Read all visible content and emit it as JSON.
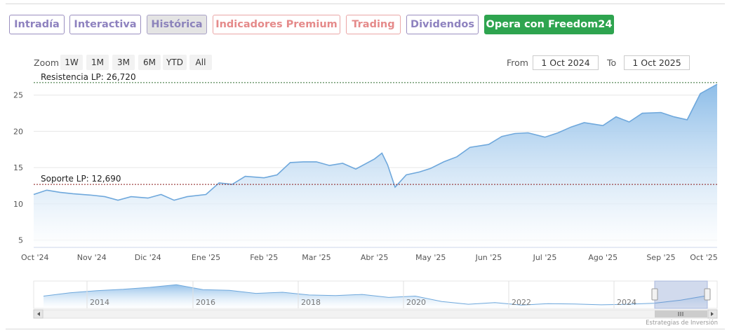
{
  "tabs": [
    {
      "label": "Intradía",
      "style": "normal"
    },
    {
      "label": "Interactiva",
      "style": "normal"
    },
    {
      "label": "Histórica",
      "style": "active"
    },
    {
      "label": "Indicadores Premium",
      "style": "premium"
    },
    {
      "label": "Trading",
      "style": "premium"
    },
    {
      "label": "Dividendos",
      "style": "normal"
    },
    {
      "label": "Opera con Freedom24",
      "style": "cta"
    }
  ],
  "zoom": {
    "label": "Zoom",
    "buttons": [
      "1W",
      "1M",
      "3M",
      "6M",
      "YTD",
      "All"
    ]
  },
  "range": {
    "from_label": "From",
    "from_value": "1 Oct 2024",
    "to_label": "To",
    "to_value": "1 Oct 2025"
  },
  "credit": "Estrategias de Inversión",
  "colors": {
    "line": "#6fa8dc",
    "area_top": "#8dbde8",
    "accent_green": "#2ea44f",
    "tab_purple": "#8e82bf",
    "tab_premium": "#e58a8a",
    "resistance": "#2e6b2e",
    "support": "#8b1a1a"
  },
  "chart_data": {
    "type": "area",
    "ylim": [
      4,
      27
    ],
    "yticks": [
      5,
      10,
      15,
      20,
      25
    ],
    "xticks": [
      "Oct '24",
      "Nov '24",
      "Dic '24",
      "Ene '25",
      "Feb '25",
      "Mar '25",
      "Abr '25",
      "May '25",
      "Jun '25",
      "Jul '25",
      "Ago '25",
      "Sep '25",
      "Oct '25"
    ],
    "x": [
      "2024-10-01",
      "2024-10-08",
      "2024-10-15",
      "2024-10-22",
      "2024-11-01",
      "2024-11-08",
      "2024-11-15",
      "2024-11-22",
      "2024-12-01",
      "2024-12-08",
      "2024-12-15",
      "2024-12-22",
      "2025-01-01",
      "2025-01-08",
      "2025-01-15",
      "2025-01-22",
      "2025-02-01",
      "2025-02-08",
      "2025-02-15",
      "2025-02-22",
      "2025-03-01",
      "2025-03-08",
      "2025-03-15",
      "2025-03-22",
      "2025-04-01",
      "2025-04-05",
      "2025-04-08",
      "2025-04-12",
      "2025-04-18",
      "2025-04-25",
      "2025-05-01",
      "2025-05-08",
      "2025-05-15",
      "2025-05-22",
      "2025-06-01",
      "2025-06-08",
      "2025-06-15",
      "2025-06-22",
      "2025-07-01",
      "2025-07-08",
      "2025-07-15",
      "2025-07-22",
      "2025-08-01",
      "2025-08-08",
      "2025-08-15",
      "2025-08-22",
      "2025-09-01",
      "2025-09-08",
      "2025-09-15",
      "2025-09-22",
      "2025-10-01"
    ],
    "series": [
      {
        "values": [
          11.3,
          11.9,
          11.6,
          11.4,
          11.2,
          11.0,
          10.5,
          11.0,
          10.8,
          11.3,
          10.5,
          11.0,
          11.3,
          12.9,
          12.7,
          13.8,
          13.6,
          14.0,
          15.7,
          15.8,
          15.8,
          15.3,
          15.6,
          14.8,
          16.2,
          17.0,
          15.4,
          12.3,
          14.0,
          14.4,
          14.9,
          15.8,
          16.5,
          17.8,
          18.2,
          19.3,
          19.7,
          19.8,
          19.2,
          19.8,
          20.6,
          21.2,
          20.8,
          22.0,
          21.3,
          22.5,
          22.6,
          22.0,
          21.6,
          25.2,
          26.5
        ]
      }
    ],
    "hlines": [
      {
        "label": "Resistencia LP: 26,720",
        "value": 26.72
      },
      {
        "label": "Soporte LP: 12,690",
        "value": 12.69
      }
    ]
  },
  "navigator": {
    "years": [
      "2014",
      "2016",
      "2018",
      "2020",
      "2022",
      "2024"
    ],
    "values": [
      4.0,
      5.2,
      6.0,
      6.5,
      7.2,
      8.2,
      6.4,
      6.1,
      5.0,
      5.4,
      4.4,
      4.2,
      4.6,
      3.5,
      4.0,
      2.0,
      1.0,
      1.6,
      0.7,
      1.2,
      1.1,
      0.8,
      1.0,
      1.4,
      2.5,
      4.2
    ]
  }
}
